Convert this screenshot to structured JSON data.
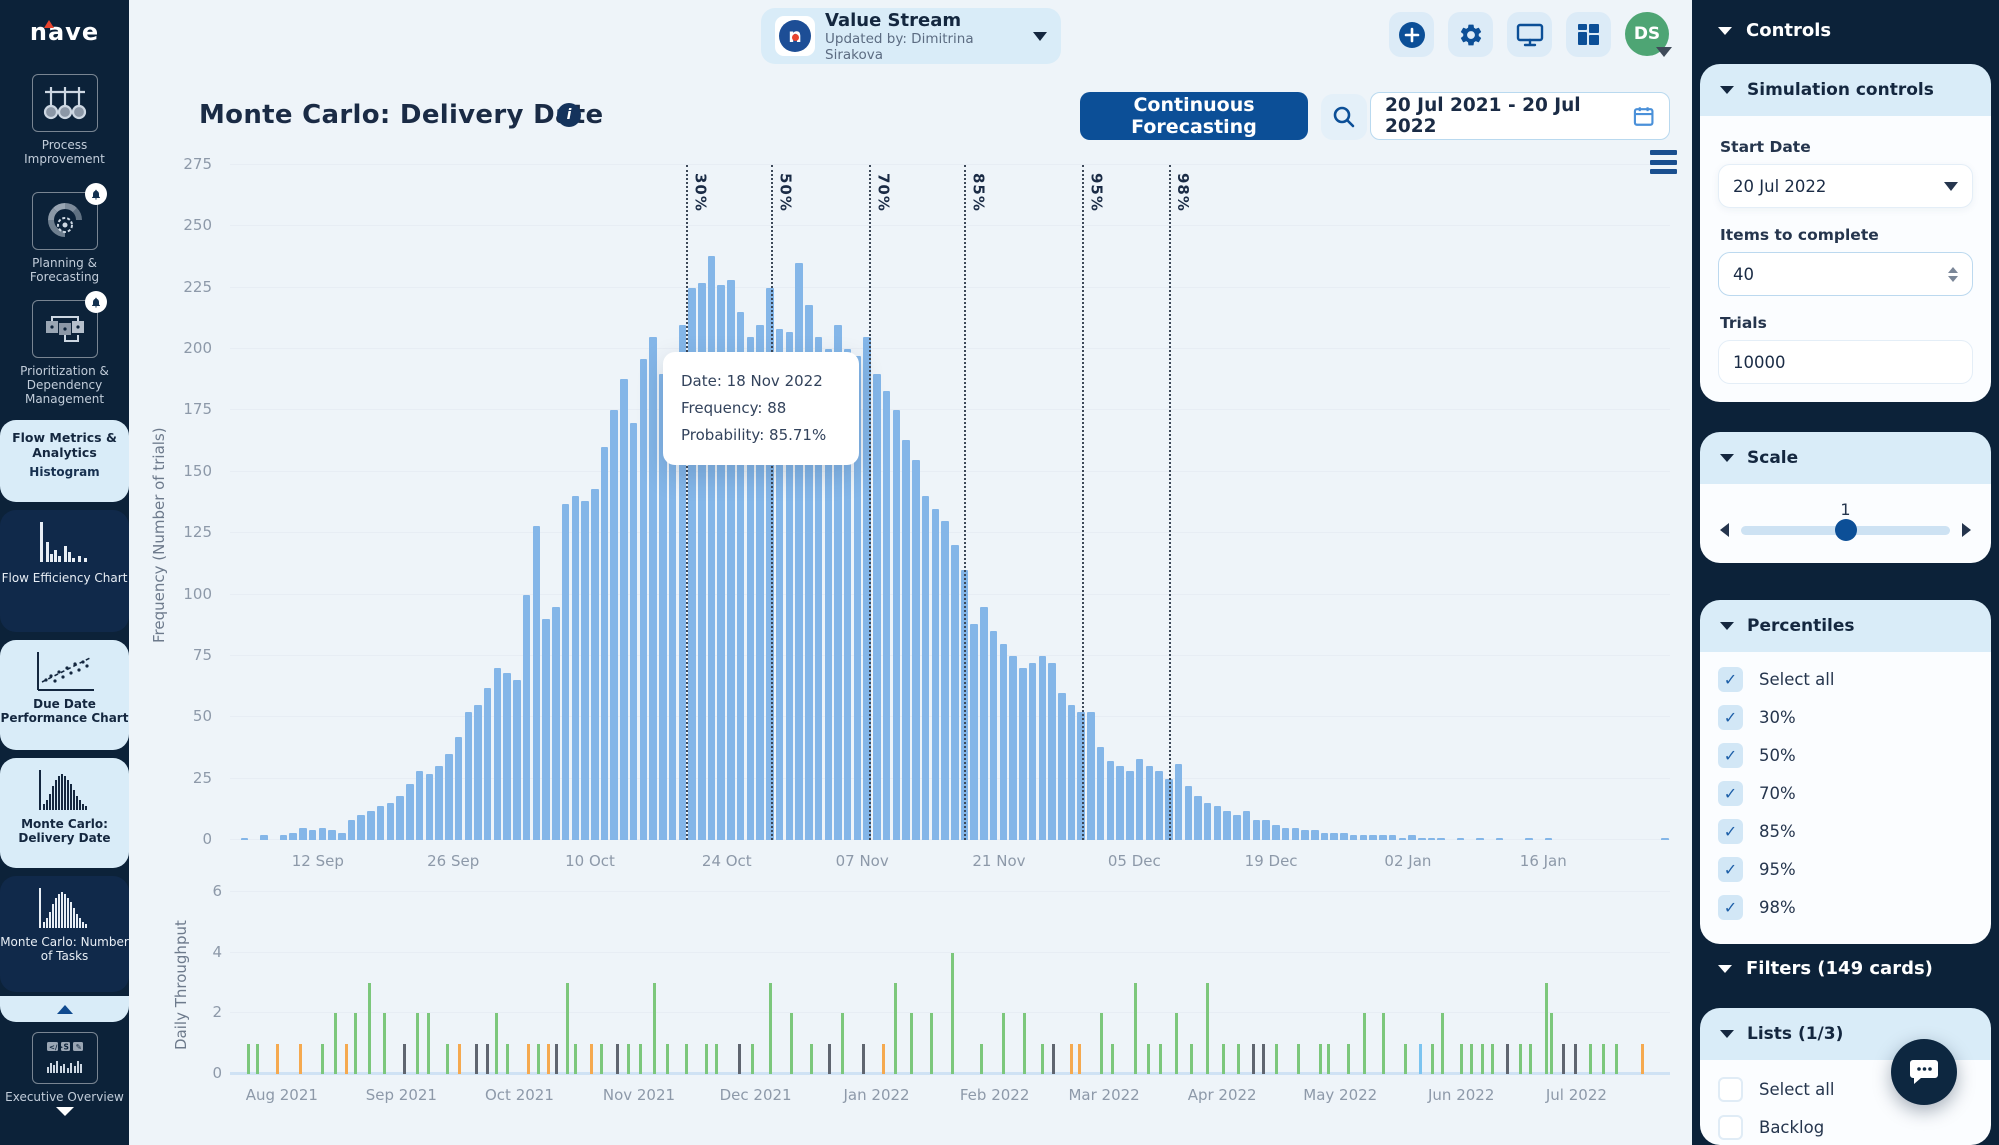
{
  "app": {
    "logo_text": "nave"
  },
  "sidebar": {
    "groups": [
      {
        "label": "Process Improvement",
        "icon": "process-improvement-icon",
        "badge": false
      },
      {
        "label": "Planning & Forecasting",
        "icon": "planning-forecasting-icon",
        "badge": true
      },
      {
        "label": "Prioritization & Dependency Management",
        "icon": "prioritization-dependency-icon",
        "badge": true
      }
    ],
    "section": {
      "label": "Flow Metrics & Analytics",
      "sub_item": "Histogram"
    },
    "charts": [
      {
        "label": "Flow Efficiency Chart"
      },
      {
        "label": "Due Date Performance Chart"
      },
      {
        "label": "Monte Carlo: Delivery Date"
      },
      {
        "label": "Monte Carlo: Number of Tasks"
      }
    ],
    "footer": {
      "label": "Executive Overview"
    }
  },
  "header": {
    "value_stream": {
      "title": "Value Stream",
      "subtitle": "Updated by: Dimitrina Sirakova"
    },
    "avatar_initials": "DS"
  },
  "toolbar": {
    "title": "Monte Carlo: Delivery Date",
    "forecast_button": "Continuous Forecasting",
    "date_range": "20 Jul 2021 - 20 Jul 2022"
  },
  "tooltip": {
    "date": "Date: 18 Nov 2022",
    "frequency": "Frequency: 88",
    "probability": "Probability: 85.71%"
  },
  "colors": {
    "navy": "#0c2239",
    "accent": "#0c4f97",
    "bar_blue": "#84b6e8",
    "green": "#7cc77c",
    "orange": "#f5a94f",
    "gray": "#5f6570",
    "light_blue_bar": "#7cc4f0"
  },
  "chart_data": [
    {
      "type": "bar",
      "title": "Monte Carlo: Delivery Date",
      "ylabel": "Frequency (Number of trials)",
      "ylim": [
        0,
        275
      ],
      "yticks": [
        0,
        25,
        50,
        75,
        100,
        125,
        150,
        175,
        200,
        225,
        250,
        275
      ],
      "grid": true,
      "xticks": [
        {
          "label": "12 Sep",
          "pos": 6.1
        },
        {
          "label": "26 Sep",
          "pos": 15.5
        },
        {
          "label": "10 Oct",
          "pos": 25.0
        },
        {
          "label": "24 Oct",
          "pos": 34.5
        },
        {
          "label": "07 Nov",
          "pos": 43.9
        },
        {
          "label": "21 Nov",
          "pos": 53.4
        },
        {
          "label": "05 Dec",
          "pos": 62.8
        },
        {
          "label": "19 Dec",
          "pos": 72.3
        },
        {
          "label": "02 Jan",
          "pos": 81.8
        },
        {
          "label": "16 Jan",
          "pos": 91.2
        }
      ],
      "percentiles": [
        {
          "label": "30%",
          "pos": 31.7
        },
        {
          "label": "50%",
          "pos": 37.6
        },
        {
          "label": "70%",
          "pos": 44.4
        },
        {
          "label": "85%",
          "pos": 51.0
        },
        {
          "label": "95%",
          "pos": 59.2
        },
        {
          "label": "98%",
          "pos": 65.2
        }
      ],
      "highlight_index": 76,
      "values": [
        0,
        1,
        0,
        2,
        0,
        2,
        3,
        5,
        4,
        5,
        4,
        3,
        8,
        10,
        12,
        14,
        15,
        18,
        23,
        28,
        27,
        30,
        35,
        42,
        52,
        55,
        62,
        70,
        68,
        65,
        100,
        128,
        90,
        95,
        137,
        140,
        138,
        143,
        160,
        175,
        188,
        170,
        196,
        205,
        190,
        188,
        210,
        225,
        227,
        238,
        226,
        228,
        215,
        205,
        210,
        225,
        208,
        207,
        235,
        218,
        205,
        200,
        210,
        200,
        197,
        205,
        190,
        183,
        175,
        163,
        155,
        140,
        135,
        130,
        120,
        110,
        88,
        95,
        85,
        80,
        75,
        70,
        72,
        75,
        72,
        60,
        55,
        52,
        52,
        38,
        32,
        30,
        28,
        33,
        30,
        28,
        25,
        31,
        22,
        18,
        15,
        14,
        12,
        10,
        12,
        8,
        8,
        6,
        5,
        5,
        4,
        4,
        3,
        3,
        3,
        2,
        2,
        2,
        2,
        2,
        1,
        2,
        1,
        1,
        1,
        0,
        1,
        0,
        1,
        0,
        1,
        0,
        0,
        1,
        0,
        1,
        0,
        0,
        0,
        0,
        0,
        0,
        0,
        0,
        0,
        0,
        0,
        1
      ]
    },
    {
      "type": "bar",
      "title": "Daily Throughput",
      "ylabel": "Daily Throughput",
      "ylim": [
        0,
        6
      ],
      "yticks": [
        0,
        2,
        4,
        6
      ],
      "grid": true,
      "xticks": [
        {
          "label": "Aug 2021",
          "pos": 3.6
        },
        {
          "label": "Sep 2021",
          "pos": 11.9
        },
        {
          "label": "Oct 2021",
          "pos": 20.1
        },
        {
          "label": "Nov 2021",
          "pos": 28.4
        },
        {
          "label": "Dec 2021",
          "pos": 36.5
        },
        {
          "label": "Jan 2022",
          "pos": 44.9
        },
        {
          "label": "Feb 2022",
          "pos": 53.1
        },
        {
          "label": "Mar 2022",
          "pos": 60.7
        },
        {
          "label": "Apr 2022",
          "pos": 68.9
        },
        {
          "label": "May 2022",
          "pos": 77.1
        },
        {
          "label": "Jun 2022",
          "pos": 85.5
        },
        {
          "label": "Jul 2022",
          "pos": 93.5
        }
      ],
      "bars": [
        [
          1.2,
          1,
          "g"
        ],
        [
          1.8,
          1,
          "g"
        ],
        [
          3.2,
          1,
          "o"
        ],
        [
          4.8,
          1,
          "o"
        ],
        [
          6.3,
          1,
          "g"
        ],
        [
          7.2,
          2,
          "g"
        ],
        [
          8.0,
          1,
          "o"
        ],
        [
          8.6,
          2,
          "g"
        ],
        [
          9.6,
          3,
          "g"
        ],
        [
          10.6,
          2,
          "g"
        ],
        [
          12.0,
          1,
          "k"
        ],
        [
          12.9,
          2,
          "g"
        ],
        [
          13.7,
          2,
          "g"
        ],
        [
          15.0,
          1,
          "g"
        ],
        [
          15.8,
          1,
          "o"
        ],
        [
          17.0,
          1,
          "k"
        ],
        [
          17.8,
          1,
          "k"
        ],
        [
          18.4,
          2,
          "g"
        ],
        [
          19.2,
          1,
          "g"
        ],
        [
          20.6,
          1,
          "o"
        ],
        [
          21.3,
          1,
          "g"
        ],
        [
          22.0,
          1,
          "o"
        ],
        [
          22.6,
          1,
          "k"
        ],
        [
          23.3,
          3,
          "g"
        ],
        [
          23.9,
          1,
          "g"
        ],
        [
          25.0,
          1,
          "o"
        ],
        [
          25.7,
          1,
          "g"
        ],
        [
          26.8,
          1,
          "k"
        ],
        [
          27.6,
          1,
          "g"
        ],
        [
          28.4,
          1,
          "g"
        ],
        [
          29.4,
          3,
          "g"
        ],
        [
          30.3,
          1,
          "g"
        ],
        [
          31.6,
          1,
          "g"
        ],
        [
          33.0,
          1,
          "g"
        ],
        [
          33.7,
          1,
          "g"
        ],
        [
          35.3,
          1,
          "k"
        ],
        [
          36.2,
          1,
          "g"
        ],
        [
          37.4,
          3,
          "g"
        ],
        [
          38.9,
          2,
          "g"
        ],
        [
          40.3,
          1,
          "g"
        ],
        [
          41.5,
          1,
          "k"
        ],
        [
          42.4,
          2,
          "g"
        ],
        [
          43.9,
          1,
          "k"
        ],
        [
          45.3,
          1,
          "o"
        ],
        [
          46.1,
          3,
          "g"
        ],
        [
          47.2,
          2,
          "g"
        ],
        [
          48.6,
          2,
          "g"
        ],
        [
          50.1,
          4,
          "g"
        ],
        [
          52.1,
          1,
          "g"
        ],
        [
          53.6,
          2,
          "g"
        ],
        [
          55.1,
          2,
          "g"
        ],
        [
          56.3,
          1,
          "g"
        ],
        [
          57.1,
          1,
          "k"
        ],
        [
          58.3,
          1,
          "o"
        ],
        [
          58.9,
          1,
          "o"
        ],
        [
          60.4,
          2,
          "g"
        ],
        [
          61.2,
          1,
          "g"
        ],
        [
          62.8,
          3,
          "g"
        ],
        [
          63.7,
          1,
          "g"
        ],
        [
          64.5,
          1,
          "g"
        ],
        [
          65.6,
          2,
          "g"
        ],
        [
          66.7,
          1,
          "g"
        ],
        [
          67.8,
          3,
          "g"
        ],
        [
          68.9,
          1,
          "g"
        ],
        [
          69.9,
          1,
          "g"
        ],
        [
          71.0,
          1,
          "k"
        ],
        [
          71.7,
          1,
          "k"
        ],
        [
          72.6,
          1,
          "g"
        ],
        [
          74.1,
          1,
          "g"
        ],
        [
          75.6,
          1,
          "g"
        ],
        [
          76.2,
          1,
          "g"
        ],
        [
          77.6,
          1,
          "g"
        ],
        [
          78.7,
          2,
          "g"
        ],
        [
          80.0,
          2,
          "g"
        ],
        [
          81.5,
          1,
          "g"
        ],
        [
          82.6,
          1,
          "b"
        ],
        [
          83.4,
          1,
          "g"
        ],
        [
          84.1,
          2,
          "g"
        ],
        [
          85.4,
          1,
          "g"
        ],
        [
          86.1,
          1,
          "g"
        ],
        [
          86.9,
          1,
          "g"
        ],
        [
          87.6,
          1,
          "g"
        ],
        [
          88.6,
          1,
          "k"
        ],
        [
          89.5,
          1,
          "g"
        ],
        [
          90.2,
          1,
          "g"
        ],
        [
          91.3,
          3,
          "g"
        ],
        [
          91.7,
          2,
          "g"
        ],
        [
          92.5,
          1,
          "k"
        ],
        [
          93.3,
          1,
          "k"
        ],
        [
          94.4,
          1,
          "g"
        ],
        [
          95.3,
          1,
          "g"
        ],
        [
          96.2,
          1,
          "g"
        ],
        [
          98.0,
          1,
          "o"
        ]
      ]
    }
  ],
  "controls_panel": {
    "title": "Controls",
    "simulation": {
      "title": "Simulation controls",
      "start_date_label": "Start Date",
      "start_date_value": "20 Jul 2022",
      "items_label": "Items to complete",
      "items_value": "40",
      "trials_label": "Trials",
      "trials_value": "10000"
    },
    "scale": {
      "title": "Scale",
      "value": "1"
    },
    "percentiles": {
      "title": "Percentiles",
      "options": [
        {
          "label": "Select all",
          "checked": true
        },
        {
          "label": "30%",
          "checked": true
        },
        {
          "label": "50%",
          "checked": true
        },
        {
          "label": "70%",
          "checked": true
        },
        {
          "label": "85%",
          "checked": true
        },
        {
          "label": "95%",
          "checked": true
        },
        {
          "label": "98%",
          "checked": true
        }
      ]
    },
    "filters": {
      "title": "Filters (149 cards)"
    },
    "lists": {
      "title": "Lists  (1/3)",
      "options": [
        {
          "label": "Select all",
          "checked": false
        },
        {
          "label": "Backlog",
          "checked": false
        }
      ]
    }
  }
}
